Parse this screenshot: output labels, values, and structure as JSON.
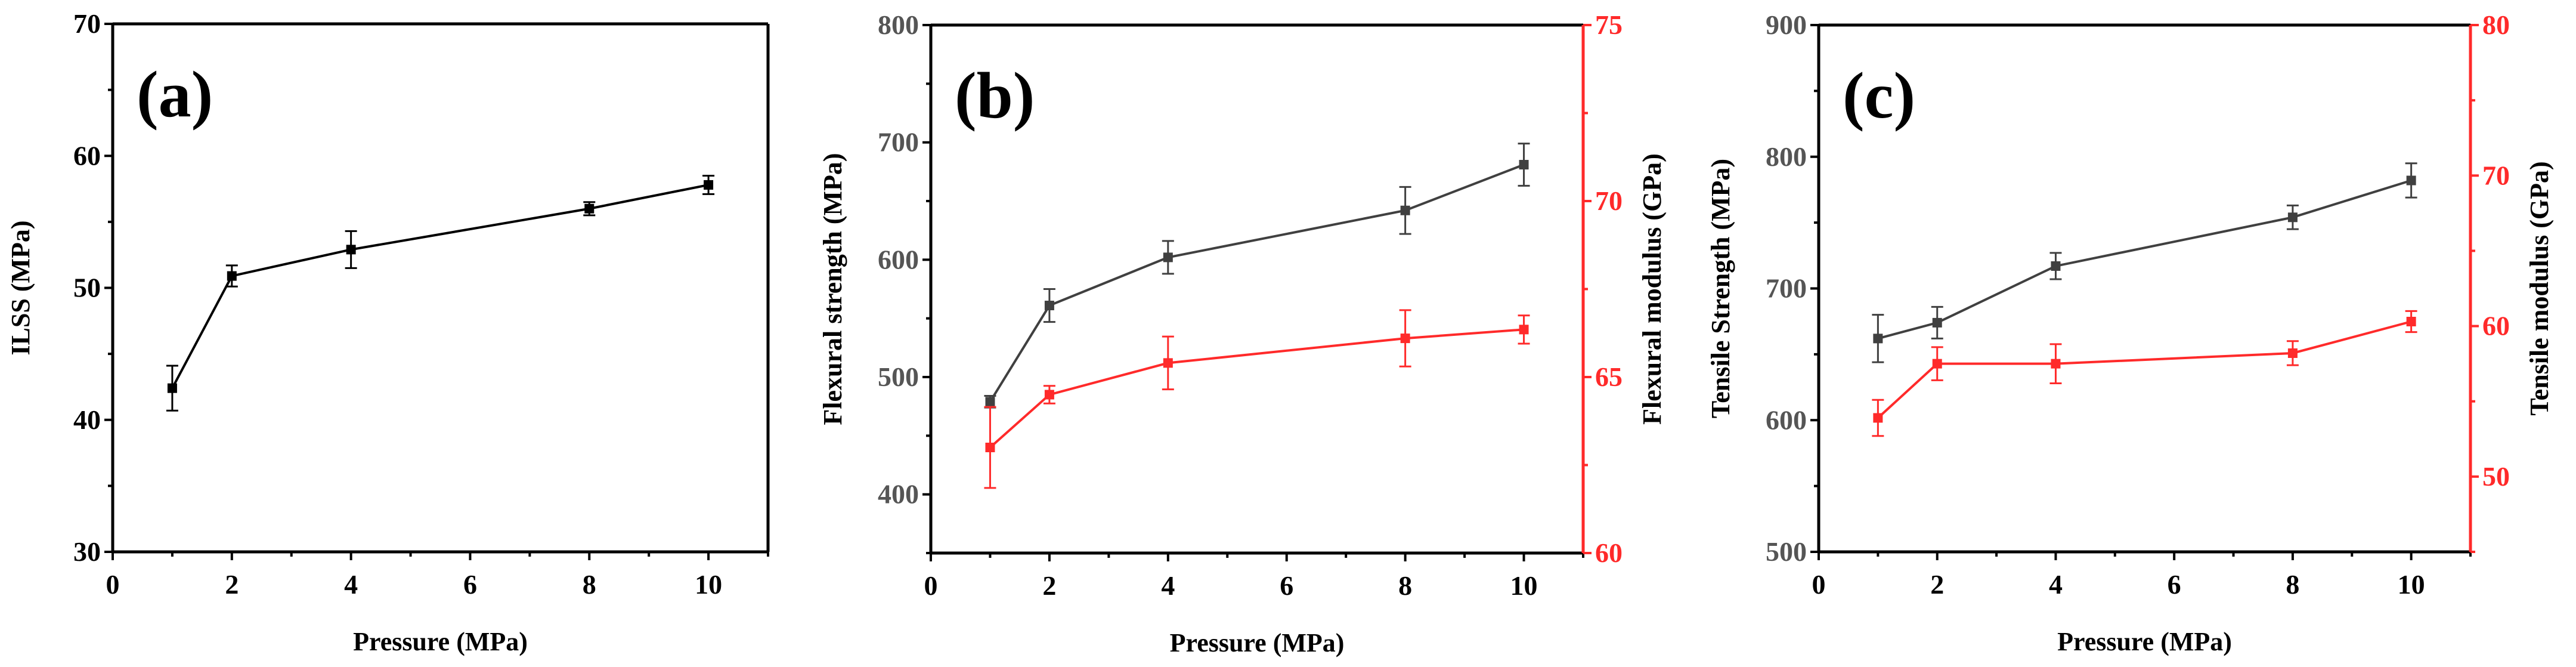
{
  "colors": {
    "black": "#000000",
    "grey": "#404040",
    "red": "#ff2a2a"
  },
  "chart_data": [
    {
      "type": "line",
      "panel_label": "(a)",
      "xlabel": "Pressure (MPa)",
      "ylabel": "ILSS (MPa)",
      "xlim": [
        0,
        11
      ],
      "xticks": [
        0,
        2,
        4,
        6,
        8,
        10
      ],
      "ylim": [
        30,
        70
      ],
      "yticks": [
        30,
        40,
        50,
        60,
        70
      ],
      "x": [
        1,
        2,
        4,
        8,
        10
      ],
      "series": [
        {
          "name": "ILSS",
          "axis": "left",
          "color": "black",
          "values": [
            42.4,
            50.9,
            52.9,
            56.0,
            57.8
          ],
          "errors": [
            1.7,
            0.8,
            1.4,
            0.5,
            0.7
          ]
        }
      ]
    },
    {
      "type": "line",
      "panel_label": "(b)",
      "xlabel": "Pressure (MPa)",
      "ylabel": "Flexural strength (MPa)",
      "ylabel_right": "Flexural modulus (GPa)",
      "xlim": [
        0,
        11
      ],
      "xticks": [
        0,
        2,
        4,
        6,
        8,
        10
      ],
      "ylim": [
        350,
        800
      ],
      "yticks": [
        400,
        500,
        600,
        700,
        800
      ],
      "ylim_right": [
        60,
        75
      ],
      "yticks_right": [
        60,
        65,
        70,
        75
      ],
      "x": [
        1,
        2,
        4,
        8,
        10
      ],
      "series": [
        {
          "name": "Flexural strength",
          "axis": "left",
          "color": "grey",
          "values": [
            479,
            561,
            602,
            642,
            681
          ],
          "errors": [
            5,
            14,
            14,
            20,
            18
          ]
        },
        {
          "name": "Flexural modulus",
          "axis": "right",
          "color": "red",
          "values": [
            63.0,
            64.5,
            65.4,
            66.1,
            66.35
          ],
          "errors": [
            1.15,
            0.25,
            0.75,
            0.8,
            0.4
          ]
        }
      ]
    },
    {
      "type": "line",
      "panel_label": "(c)",
      "xlabel": "Pressure (MPa)",
      "ylabel": "Tensile Strength (MPa)",
      "ylabel_right": "Tensile modulus (GPa)",
      "xlim": [
        0,
        11
      ],
      "xticks": [
        0,
        2,
        4,
        6,
        8,
        10
      ],
      "ylim": [
        500,
        900
      ],
      "yticks": [
        500,
        600,
        700,
        800,
        900
      ],
      "ylim_right": [
        45,
        80
      ],
      "yticks_right": [
        50,
        60,
        70,
        80
      ],
      "x": [
        1,
        2,
        4,
        8,
        10
      ],
      "series": [
        {
          "name": "Tensile strength",
          "axis": "left",
          "color": "grey",
          "values": [
            662,
            674,
            717,
            754,
            782
          ],
          "errors": [
            18,
            12,
            10,
            9,
            13
          ]
        },
        {
          "name": "Tensile modulus",
          "axis": "right",
          "color": "red",
          "values": [
            53.9,
            57.5,
            57.5,
            58.2,
            60.3
          ],
          "errors": [
            1.2,
            1.1,
            1.3,
            0.8,
            0.7
          ]
        }
      ]
    }
  ]
}
